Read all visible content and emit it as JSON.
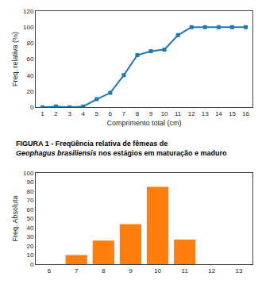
{
  "chart_data": [
    {
      "type": "line",
      "x": [
        1,
        2,
        3,
        4,
        5,
        6,
        7,
        8,
        9,
        10,
        11,
        12,
        13,
        14,
        15,
        16
      ],
      "values": [
        0,
        1,
        0,
        1,
        10,
        18,
        40,
        65,
        70,
        72,
        90,
        100,
        100,
        100,
        100,
        100
      ],
      "marker": "square",
      "xlabel": "Comprimento total (cm)",
      "ylabel": "Freq. relativa (%)",
      "xlim": [
        0.5,
        16.5
      ],
      "xticks": [
        1,
        2,
        3,
        4,
        5,
        6,
        7,
        8,
        9,
        10,
        11,
        12,
        13,
        14,
        15,
        16
      ],
      "ylim": [
        0,
        120
      ],
      "yticks": [
        0,
        20,
        40,
        60,
        80,
        100,
        120
      ],
      "grid": false,
      "annotations": [
        "FIGURA 1 - Freqüência relativa de fêmeas de ",
        "Geophagus brasiliensis",
        "nos estágios em maturação e maduro"
      ]
    },
    {
      "type": "bar",
      "x": [
        7,
        8,
        9,
        10,
        11
      ],
      "values": [
        10,
        26,
        44,
        85,
        27
      ],
      "ylabel": "Freq. Absoluta",
      "xlim": [
        5.5,
        13.5
      ],
      "xticks": [
        6,
        7,
        8,
        9,
        10,
        11,
        12,
        13
      ],
      "ylim": [
        0,
        100
      ],
      "yticks": [
        0,
        10,
        20,
        30,
        40,
        50,
        60,
        70,
        80,
        90,
        100
      ],
      "grid": false
    }
  ]
}
